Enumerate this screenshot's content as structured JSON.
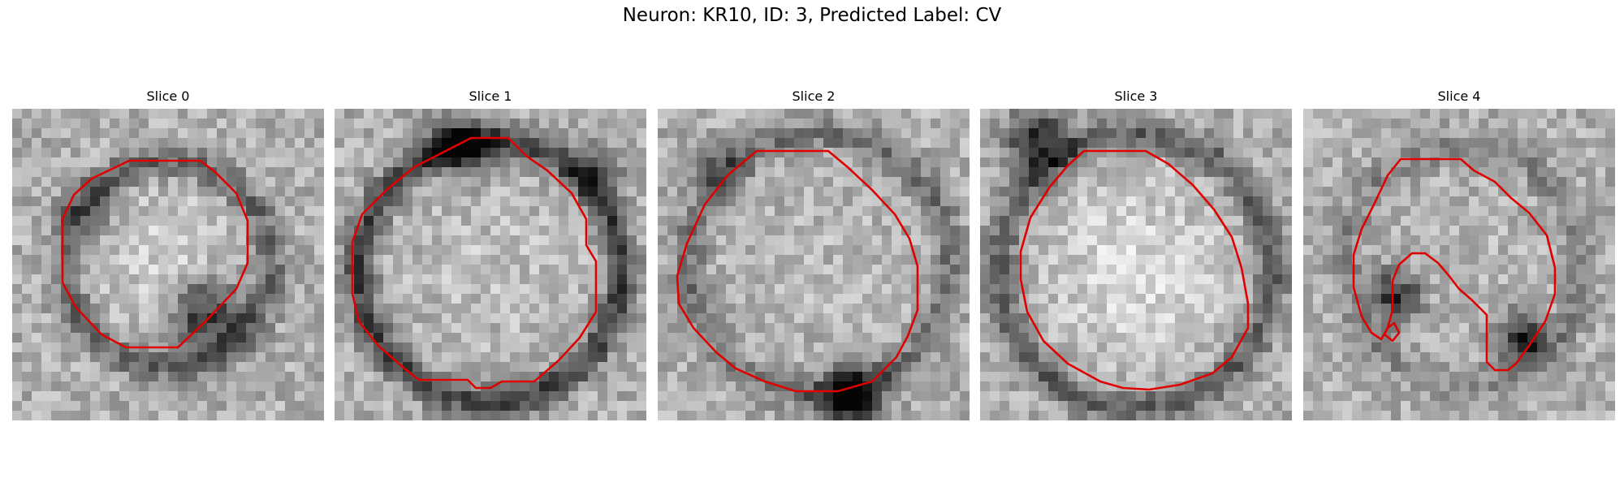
{
  "figure": {
    "title": "Neuron: KR10, ID: 3, Predicted Label: CV",
    "contour_color": "#e00000"
  },
  "slices": [
    {
      "title": "Slice 0"
    },
    {
      "title": "Slice 1"
    },
    {
      "title": "Slice 2"
    },
    {
      "title": "Slice 3"
    },
    {
      "title": "Slice 4"
    }
  ]
}
